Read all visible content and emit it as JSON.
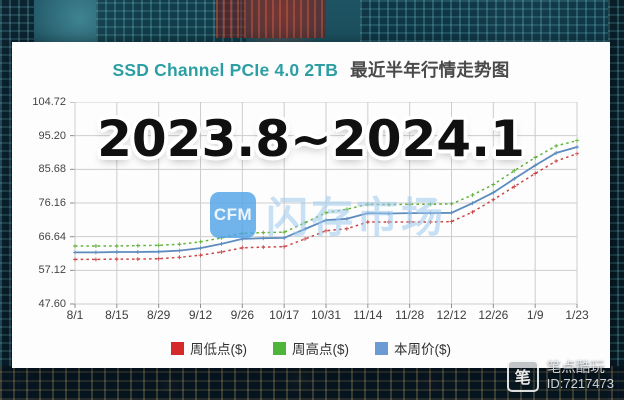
{
  "title": {
    "en": "SSD Channel PCIe 4.0 2TB",
    "zh": "最近半年行情走势图"
  },
  "overlay_period": "2023.8~2024.1",
  "watermark": {
    "logo": "CFM",
    "text": "闪存市场"
  },
  "photo_credit": {
    "logo_glyph": "笔",
    "name": "笔点酷玩",
    "id": "ID:7217473"
  },
  "legend": [
    {
      "label": "周低点($)",
      "color": "#d42a2a"
    },
    {
      "label": "周高点($)",
      "color": "#4eb43a"
    },
    {
      "label": "本周价($)",
      "color": "#6b9bd2"
    }
  ],
  "chart_data": {
    "type": "line",
    "title": "SSD Channel PCIe 4.0 2TB 最近半年行情走势图",
    "xlabel": "",
    "ylabel": "",
    "grid": true,
    "legend_position": "bottom",
    "ylim": [
      47.6,
      104.72
    ],
    "yticks": [
      "104.72",
      "95.20",
      "85.68",
      "76.16",
      "66.64",
      "57.12",
      "47.60"
    ],
    "xticks": [
      "8/1",
      "8/15",
      "8/29",
      "9/12",
      "9/26",
      "10/17",
      "10/31",
      "11/14",
      "11/28",
      "12/12",
      "12/26",
      "1/9",
      "1/23"
    ],
    "x": [
      "8/1",
      "8/8",
      "8/15",
      "8/22",
      "8/29",
      "9/5",
      "9/12",
      "9/19",
      "9/26",
      "10/10",
      "10/17",
      "10/24",
      "10/31",
      "11/7",
      "11/14",
      "11/21",
      "11/28",
      "12/5",
      "12/12",
      "12/19",
      "12/26",
      "1/2",
      "1/9",
      "1/16",
      "1/23"
    ],
    "series": [
      {
        "name": "周低点($)",
        "color": "#cb4747",
        "style": "dotted",
        "values": [
          60.2,
          60.2,
          60.3,
          60.3,
          60.4,
          60.8,
          61.4,
          62.3,
          63.5,
          63.7,
          63.8,
          66.0,
          68.3,
          68.9,
          70.8,
          70.8,
          70.8,
          70.8,
          70.9,
          73.6,
          77.1,
          80.8,
          84.5,
          88.0,
          90.1
        ]
      },
      {
        "name": "周高点($)",
        "color": "#61b23e",
        "style": "dotted",
        "values": [
          64.0,
          64.0,
          64.0,
          64.1,
          64.2,
          64.5,
          65.2,
          66.3,
          67.6,
          67.8,
          67.9,
          70.6,
          73.4,
          74.4,
          75.8,
          75.7,
          75.8,
          75.8,
          75.9,
          78.4,
          81.4,
          85.3,
          89.0,
          92.3,
          93.8
        ]
      },
      {
        "name": "本周价($)",
        "color": "#5d8cbe",
        "style": "solid",
        "values": [
          62.2,
          62.2,
          62.3,
          62.3,
          62.4,
          62.7,
          63.4,
          64.6,
          66.0,
          66.2,
          66.3,
          68.8,
          71.3,
          71.7,
          73.3,
          73.2,
          73.3,
          73.3,
          73.4,
          76.1,
          79.1,
          83.0,
          86.8,
          90.3,
          92.0
        ]
      }
    ]
  }
}
